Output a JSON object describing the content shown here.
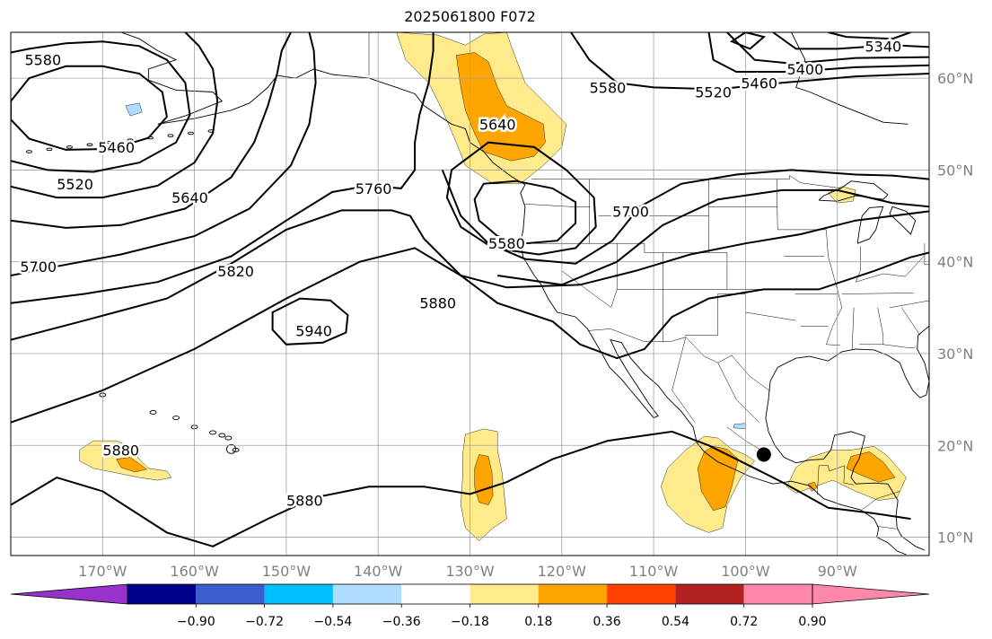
{
  "title": "2025061800 F072",
  "map": {
    "projection": "PlateCarree",
    "lon_range": [
      -180,
      -80
    ],
    "lat_range": [
      8,
      65
    ],
    "lon_ticks": [
      {
        "lon": -170,
        "label": "170°W"
      },
      {
        "lon": -160,
        "label": "160°W"
      },
      {
        "lon": -150,
        "label": "150°W"
      },
      {
        "lon": -140,
        "label": "140°W"
      },
      {
        "lon": -130,
        "label": "130°W"
      },
      {
        "lon": -120,
        "label": "120°W"
      },
      {
        "lon": -110,
        "label": "110°W"
      },
      {
        "lon": -100,
        "label": "100°W"
      },
      {
        "lon": -90,
        "label": "90°W"
      }
    ],
    "lat_ticks": [
      {
        "lat": 60,
        "label": "60°N"
      },
      {
        "lat": 50,
        "label": "50°N"
      },
      {
        "lat": 40,
        "label": "40°N"
      },
      {
        "lat": 30,
        "label": "30°N"
      },
      {
        "lat": 20,
        "label": "20°N"
      },
      {
        "lat": 10,
        "label": "10°N"
      }
    ],
    "gridlines": true,
    "contour_labels": [
      "5340",
      "5400",
      "5460",
      "5520",
      "5580",
      "5640",
      "5700",
      "5760",
      "5820",
      "5880",
      "5940",
      "5580"
    ],
    "contour_labels_full": [
      {
        "text": "5880",
        "lon": -168,
        "lat": 19.5
      },
      {
        "text": "5880",
        "lon": -148,
        "lat": 14
      },
      {
        "text": "5940",
        "lon": -147,
        "lat": 32.5
      },
      {
        "text": "5880",
        "lon": -133.5,
        "lat": 35.5
      },
      {
        "text": "5820",
        "lon": -155.5,
        "lat": 39
      },
      {
        "text": "5700",
        "lon": -177,
        "lat": 39.5
      },
      {
        "text": "5640",
        "lon": -160.5,
        "lat": 47
      },
      {
        "text": "5520",
        "lon": -173,
        "lat": 48.5
      },
      {
        "text": "5460",
        "lon": -168.5,
        "lat": 52.5
      },
      {
        "text": "5580",
        "lon": -176.5,
        "lat": 62
      },
      {
        "text": "5760",
        "lon": -140.5,
        "lat": 48
      },
      {
        "text": "5640",
        "lon": -127,
        "lat": 55
      },
      {
        "text": "5580",
        "lon": -126,
        "lat": 42
      },
      {
        "text": "5700",
        "lon": -112.5,
        "lat": 45.5
      },
      {
        "text": "5580",
        "lon": -115,
        "lat": 59
      },
      {
        "text": "5520",
        "lon": -103.5,
        "lat": 58.5
      },
      {
        "text": "5460",
        "lon": -98.5,
        "lat": 59.5
      },
      {
        "text": "5400",
        "lon": -93.5,
        "lat": 61
      },
      {
        "text": "5340",
        "lon": -85,
        "lat": 63.5
      }
    ],
    "marker": {
      "lon": -98,
      "lat": 19,
      "color": "#000000"
    },
    "fill_colors": {
      "light": "#ffeb8c",
      "dark": "#ffa500",
      "blue": "#afdcff"
    }
  },
  "colorbar": {
    "colors": [
      "#9932cc",
      "#00008b",
      "#3a5fcd",
      "#00bfff",
      "#afdcff",
      "#ffffff",
      "#ffeb8c",
      "#ffa500",
      "#ff4000",
      "#b22222",
      "#ff88aa",
      "#ff88aa"
    ],
    "labels": [
      "−0.90",
      "−0.72",
      "−0.54",
      "−0.36",
      "−0.18",
      "0.18",
      "0.36",
      "0.54",
      "0.72",
      "0.90"
    ]
  }
}
